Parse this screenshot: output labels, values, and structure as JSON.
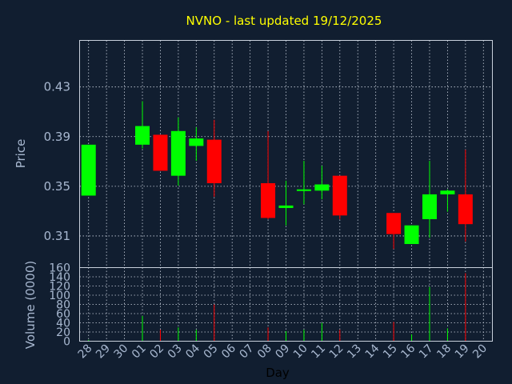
{
  "chart_data": [
    {
      "type": "candlestick",
      "title": "NVNO - last updated 19/12/2025",
      "ylabel": "Price",
      "ylim": [
        0.2845,
        0.4675
      ],
      "yticks": [
        "0.31",
        "0.35",
        "0.39",
        "0.43"
      ],
      "grid": true,
      "colors": {
        "up": "#00ff00",
        "down": "#ff0000",
        "background": "#111e30",
        "title": "#ffff00",
        "text": "#a8b8d0"
      },
      "candles": [
        {
          "day": "28",
          "open": 0.3425,
          "high": 0.3835,
          "low": 0.3425,
          "close": 0.3835
        },
        {
          "day": "01",
          "open": 0.3835,
          "high": 0.4185,
          "low": 0.3805,
          "close": 0.3985
        },
        {
          "day": "02",
          "open": 0.3915,
          "high": 0.3915,
          "low": 0.3625,
          "close": 0.3625
        },
        {
          "day": "03",
          "open": 0.3585,
          "high": 0.4055,
          "low": 0.3505,
          "close": 0.3945
        },
        {
          "day": "04",
          "open": 0.3825,
          "high": 0.3975,
          "low": 0.3705,
          "close": 0.3885
        },
        {
          "day": "05",
          "open": 0.3875,
          "high": 0.4035,
          "low": 0.3415,
          "close": 0.3525
        },
        {
          "day": "08",
          "open": 0.3525,
          "high": 0.3945,
          "low": 0.3235,
          "close": 0.3245
        },
        {
          "day": "09",
          "open": 0.3325,
          "high": 0.3545,
          "low": 0.3185,
          "close": 0.3345
        },
        {
          "day": "10",
          "open": 0.3465,
          "high": 0.3705,
          "low": 0.3355,
          "close": 0.3475
        },
        {
          "day": "11",
          "open": 0.3465,
          "high": 0.3665,
          "low": 0.3395,
          "close": 0.3515
        },
        {
          "day": "12",
          "open": 0.3585,
          "high": 0.3585,
          "low": 0.3235,
          "close": 0.3265
        },
        {
          "day": "15",
          "open": 0.3285,
          "high": 0.3285,
          "low": 0.2995,
          "close": 0.3115
        },
        {
          "day": "16",
          "open": 0.3035,
          "high": 0.3185,
          "low": 0.3035,
          "close": 0.3185
        },
        {
          "day": "17",
          "open": 0.3235,
          "high": 0.3705,
          "low": 0.3085,
          "close": 0.3435
        },
        {
          "day": "18",
          "open": 0.3435,
          "high": 0.3475,
          "low": 0.3295,
          "close": 0.3465
        },
        {
          "day": "19",
          "open": 0.3435,
          "high": 0.3795,
          "low": 0.3055,
          "close": 0.3195
        }
      ]
    },
    {
      "type": "bar",
      "xlabel": "Day",
      "ylabel": "Volume (0000)",
      "ylim": [
        0,
        160
      ],
      "yticks": [
        "0",
        "20",
        "40",
        "60",
        "80",
        "100",
        "120",
        "140",
        "160"
      ],
      "categories": [
        "28",
        "29",
        "30",
        "01",
        "02",
        "03",
        "04",
        "05",
        "06",
        "07",
        "08",
        "09",
        "10",
        "11",
        "12",
        "13",
        "14",
        "15",
        "16",
        "17",
        "18",
        "19",
        "20"
      ],
      "values": [
        3,
        0,
        0,
        55,
        25,
        30,
        25,
        80,
        0,
        0,
        30,
        22,
        25,
        40,
        25,
        0,
        0,
        42,
        15,
        118,
        28,
        148,
        0
      ],
      "bar_colors": [
        "#00ff00",
        "#00ff00",
        "#00ff00",
        "#00ff00",
        "#ff0000",
        "#00ff00",
        "#00ff00",
        "#ff0000",
        "#00ff00",
        "#00ff00",
        "#ff0000",
        "#00ff00",
        "#00ff00",
        "#00ff00",
        "#ff0000",
        "#00ff00",
        "#00ff00",
        "#ff0000",
        "#00ff00",
        "#00ff00",
        "#00ff00",
        "#ff0000",
        "#00ff00"
      ]
    }
  ]
}
